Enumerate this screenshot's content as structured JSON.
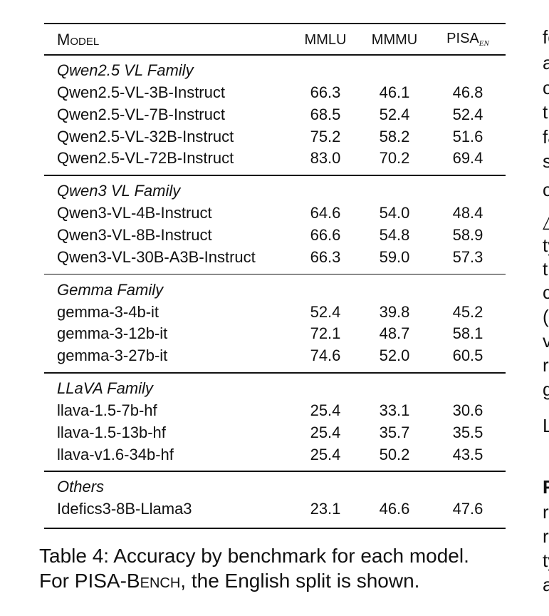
{
  "table": {
    "header": {
      "model": "Model",
      "mmlu": "MMLU",
      "mmmu": "MMMU",
      "pisa": "PISA",
      "pisa_sub": "en"
    },
    "groups": [
      {
        "title": "Qwen2.5 VL Family",
        "rows": [
          [
            "Qwen2.5-VL-3B-Instruct",
            "66.3",
            "46.1",
            "46.8"
          ],
          [
            "Qwen2.5-VL-7B-Instruct",
            "68.5",
            "52.4",
            "52.4"
          ],
          [
            "Qwen2.5-VL-32B-Instruct",
            "75.2",
            "58.2",
            "51.6"
          ],
          [
            "Qwen2.5-VL-72B-Instruct",
            "83.0",
            "70.2",
            "69.4"
          ]
        ]
      },
      {
        "title": "Qwen3 VL Family",
        "rows": [
          [
            "Qwen3-VL-4B-Instruct",
            "64.6",
            "54.0",
            "48.4"
          ],
          [
            "Qwen3-VL-8B-Instruct",
            "66.6",
            "54.8",
            "58.9"
          ],
          [
            "Qwen3-VL-30B-A3B-Instruct",
            "66.3",
            "59.0",
            "57.3"
          ]
        ]
      },
      {
        "title": "Gemma Family",
        "rows": [
          [
            "gemma-3-4b-it",
            "52.4",
            "39.8",
            "45.2"
          ],
          [
            "gemma-3-12b-it",
            "72.1",
            "48.7",
            "58.1"
          ],
          [
            "gemma-3-27b-it",
            "74.6",
            "52.0",
            "60.5"
          ]
        ]
      },
      {
        "title": "LLaVA Family",
        "rows": [
          [
            "llava-1.5-7b-hf",
            "25.4",
            "33.1",
            "30.6"
          ],
          [
            "llava-1.5-13b-hf",
            "25.4",
            "35.7",
            "35.5"
          ],
          [
            "llava-v1.6-34b-hf",
            "25.4",
            "50.2",
            "43.5"
          ]
        ]
      },
      {
        "title": "Others",
        "rows": [
          [
            "Idefics3-8B-Llama3",
            "23.1",
            "46.6",
            "47.6"
          ]
        ]
      }
    ]
  },
  "caption": {
    "line1": "Table 4: Accuracy by benchmark for each model.",
    "line2_a": "For PISA-",
    "line2_b": "Bench",
    "line2_c": ", the English split is shown."
  },
  "side_text": [
    "fc",
    "a",
    "c",
    "t",
    "fa",
    "s",
    "c",
    "△",
    "ty",
    "t",
    "c",
    "(",
    "v",
    "r",
    "g",
    "L",
    "F",
    "r",
    "r",
    "ty",
    "a"
  ]
}
